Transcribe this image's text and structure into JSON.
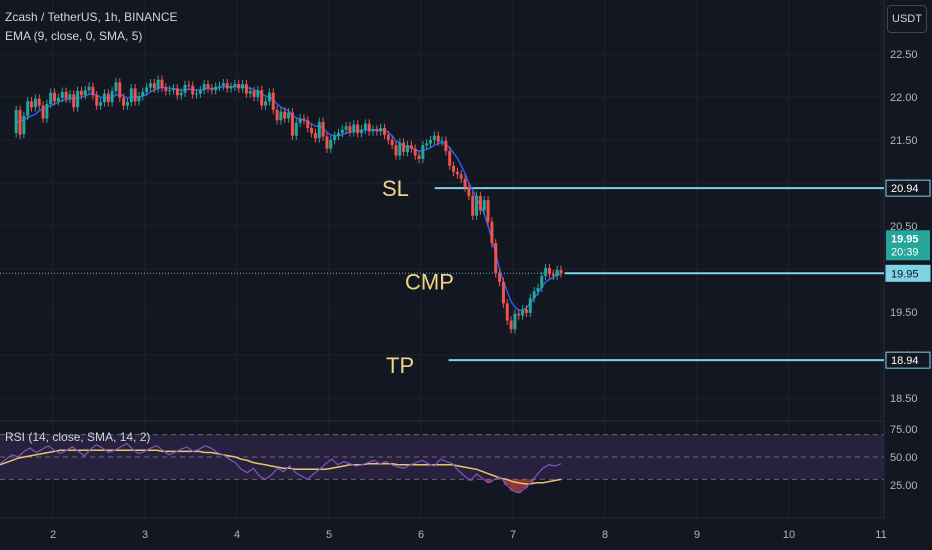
{
  "header": {
    "symbol_line": "Zcash / TetherUS, 1h, BINANCE",
    "ema_line": "EMA (9, close, 0, SMA, 5)",
    "rsi_line": "RSI (14, close, SMA, 14, 2)",
    "currency_button": "USDT"
  },
  "colors": {
    "background": "#131722",
    "up": "#26a69a",
    "down": "#ef5350",
    "ema": "#2962ff",
    "level_line": "#7fd3e6",
    "annotation_text": "#f0d48a",
    "rsi_line": "#7e57c2",
    "rsi_ma": "#e8c66a",
    "rsi_band": "#2a2240"
  },
  "chart_data": [
    {
      "type": "candlestick",
      "title": "Zcash / TetherUS, 1h, BINANCE",
      "x_ticks": [
        "2",
        "3",
        "4",
        "5",
        "6",
        "7",
        "8",
        "9",
        "10",
        "11"
      ],
      "y_ticks": [
        "22.50",
        "22.00",
        "21.50",
        "21.00",
        "20.50",
        "20.00",
        "19.50",
        "19.00",
        "18.50"
      ],
      "ylim": [
        18.35,
        22.9
      ],
      "x_range_days": [
        1.6,
        11.0
      ],
      "bar_spacing_days": 0.0417,
      "candles": [
        [
          21.58,
          21.85
        ],
        [
          21.85,
          21.56
        ],
        [
          21.57,
          21.78
        ],
        [
          21.78,
          21.95
        ],
        [
          21.95,
          21.88
        ],
        [
          21.88,
          21.98
        ],
        [
          21.98,
          21.9
        ],
        [
          21.9,
          21.75
        ],
        [
          21.75,
          21.92
        ],
        [
          21.92,
          22.05
        ],
        [
          22.05,
          21.95
        ],
        [
          21.95,
          21.99
        ],
        [
          21.99,
          22.06
        ],
        [
          22.06,
          21.98
        ],
        [
          21.98,
          22.03
        ],
        [
          22.03,
          21.88
        ],
        [
          21.88,
          22.07
        ],
        [
          22.07,
          22.02
        ],
        [
          22.02,
          22.08
        ],
        [
          22.08,
          22.12
        ],
        [
          22.12,
          22.02
        ],
        [
          22.02,
          21.9
        ],
        [
          21.9,
          21.94
        ],
        [
          21.94,
          22.04
        ],
        [
          22.04,
          21.94
        ],
        [
          21.94,
          22.07
        ],
        [
          22.07,
          22.17
        ],
        [
          22.17,
          21.99
        ],
        [
          21.99,
          21.9
        ],
        [
          21.9,
          21.94
        ],
        [
          21.94,
          22.1
        ],
        [
          22.1,
          21.95
        ],
        [
          21.95,
          22.01
        ],
        [
          22.01,
          22.06
        ],
        [
          22.06,
          22.11
        ],
        [
          22.11,
          22.16
        ],
        [
          22.16,
          22.1
        ],
        [
          22.1,
          22.2
        ],
        [
          22.2,
          22.11
        ],
        [
          22.11,
          22.07
        ],
        [
          22.07,
          22.08
        ],
        [
          22.08,
          22.1
        ],
        [
          22.1,
          22.02
        ],
        [
          22.02,
          22.05
        ],
        [
          22.05,
          22.14
        ],
        [
          22.14,
          22.13
        ],
        [
          22.13,
          22.03
        ],
        [
          22.03,
          22.04
        ],
        [
          22.04,
          22.08
        ],
        [
          22.08,
          22.15
        ],
        [
          22.15,
          22.1
        ],
        [
          22.1,
          22.08
        ],
        [
          22.08,
          22.12
        ],
        [
          22.12,
          22.13
        ],
        [
          22.13,
          22.16
        ],
        [
          22.16,
          22.1
        ],
        [
          22.1,
          22.12
        ],
        [
          22.12,
          22.15
        ],
        [
          22.15,
          22.1
        ],
        [
          22.1,
          22.15
        ],
        [
          22.15,
          22.04
        ],
        [
          22.04,
          22.07
        ],
        [
          22.07,
          22.0
        ],
        [
          22.0,
          22.08
        ],
        [
          22.08,
          21.9
        ],
        [
          21.9,
          21.95
        ],
        [
          21.95,
          22.05
        ],
        [
          22.05,
          21.85
        ],
        [
          21.85,
          21.73
        ],
        [
          21.73,
          21.83
        ],
        [
          21.83,
          21.75
        ],
        [
          21.75,
          21.82
        ],
        [
          21.82,
          21.55
        ],
        [
          21.55,
          21.7
        ],
        [
          21.7,
          21.75
        ],
        [
          21.75,
          21.73
        ],
        [
          21.73,
          21.64
        ],
        [
          21.64,
          21.58
        ],
        [
          21.58,
          21.52
        ],
        [
          21.52,
          21.71
        ],
        [
          21.71,
          21.54
        ],
        [
          21.54,
          21.4
        ],
        [
          21.4,
          21.5
        ],
        [
          21.5,
          21.55
        ],
        [
          21.55,
          21.58
        ],
        [
          21.58,
          21.62
        ],
        [
          21.62,
          21.66
        ],
        [
          21.66,
          21.59
        ],
        [
          21.59,
          21.68
        ],
        [
          21.68,
          21.58
        ],
        [
          21.58,
          21.62
        ],
        [
          21.62,
          21.69
        ],
        [
          21.69,
          21.6
        ],
        [
          21.6,
          21.62
        ],
        [
          21.62,
          21.6
        ],
        [
          21.6,
          21.64
        ],
        [
          21.64,
          21.56
        ],
        [
          21.56,
          21.5
        ],
        [
          21.5,
          21.44
        ],
        [
          21.44,
          21.32
        ],
        [
          21.32,
          21.47
        ],
        [
          21.47,
          21.36
        ],
        [
          21.36,
          21.44
        ],
        [
          21.44,
          21.4
        ],
        [
          21.4,
          21.32
        ],
        [
          21.32,
          21.28
        ],
        [
          21.28,
          21.44
        ],
        [
          21.44,
          21.46
        ],
        [
          21.46,
          21.5
        ],
        [
          21.5,
          21.55
        ],
        [
          21.55,
          21.48
        ],
        [
          21.48,
          21.49
        ],
        [
          21.49,
          21.37
        ],
        [
          21.37,
          21.2
        ],
        [
          21.2,
          21.13
        ],
        [
          21.13,
          21.1
        ],
        [
          21.1,
          21.05
        ],
        [
          21.05,
          20.95
        ],
        [
          20.95,
          20.85
        ],
        [
          20.85,
          20.62
        ],
        [
          20.62,
          20.85
        ],
        [
          20.85,
          20.68
        ],
        [
          20.68,
          20.8
        ],
        [
          20.8,
          20.55
        ],
        [
          20.55,
          20.3
        ],
        [
          20.3,
          19.95
        ],
        [
          19.95,
          19.85
        ],
        [
          19.85,
          19.6
        ],
        [
          19.6,
          19.4
        ],
        [
          19.4,
          19.3
        ],
        [
          19.3,
          19.48
        ],
        [
          19.48,
          19.46
        ],
        [
          19.46,
          19.53
        ],
        [
          19.53,
          19.49
        ],
        [
          19.49,
          19.66
        ],
        [
          19.66,
          19.74
        ],
        [
          19.74,
          19.78
        ],
        [
          19.78,
          19.92
        ],
        [
          19.92,
          20.01
        ],
        [
          20.01,
          19.94
        ],
        [
          19.94,
          19.92
        ],
        [
          19.92,
          19.99
        ],
        [
          19.99,
          19.95
        ]
      ],
      "ema": {
        "name": "EMA (9, close, 0, SMA, 5)",
        "values": [
          21.7,
          21.72,
          21.74,
          21.76,
          21.78,
          21.8,
          21.84,
          21.86,
          21.88,
          21.9,
          21.92,
          21.94,
          21.96,
          21.97,
          21.98,
          21.98,
          21.99,
          22.0,
          22.01,
          22.03,
          22.04,
          22.02,
          22.0,
          21.99,
          21.99,
          22.0,
          22.02,
          22.03,
          22.01,
          21.99,
          22.0,
          22.01,
          22.0,
          22.01,
          22.03,
          22.06,
          22.08,
          22.1,
          22.11,
          22.11,
          22.1,
          22.1,
          22.09,
          22.08,
          22.08,
          22.09,
          22.09,
          22.08,
          22.08,
          22.09,
          22.1,
          22.1,
          22.1,
          22.11,
          22.12,
          22.12,
          22.12,
          22.12,
          22.12,
          22.12,
          22.11,
          22.1,
          22.08,
          22.07,
          22.04,
          22.01,
          22.0,
          21.97,
          21.92,
          21.88,
          21.86,
          21.84,
          21.78,
          21.76,
          21.74,
          21.73,
          21.71,
          21.69,
          21.66,
          21.66,
          21.64,
          21.59,
          21.56,
          21.55,
          21.55,
          21.56,
          21.58,
          21.59,
          21.6,
          21.61,
          21.61,
          21.62,
          21.62,
          21.62,
          21.62,
          21.62,
          21.61,
          21.59,
          21.55,
          21.49,
          21.46,
          21.43,
          21.42,
          21.41,
          21.39,
          21.37,
          21.38,
          21.39,
          21.41,
          21.44,
          21.46,
          21.47,
          21.45,
          21.41,
          21.35,
          21.29,
          21.2,
          21.11,
          21.0,
          20.92,
          20.82,
          20.74,
          20.64,
          20.5,
          20.34,
          20.18,
          20.0,
          19.86,
          19.74,
          19.62,
          19.56,
          19.52,
          19.52,
          19.55,
          19.6,
          19.66,
          19.72,
          19.79,
          19.85,
          19.88,
          19.9,
          19.93,
          19.94
        ]
      },
      "levels": [
        {
          "label": "SL",
          "price_label": "20.94",
          "value": 20.94,
          "from_day": 6.15
        },
        {
          "label": "CMP",
          "price_label": "19.95",
          "value": 19.95,
          "from_day": 7.1
        },
        {
          "label": "TP",
          "price_label": "18.94",
          "value": 18.94,
          "from_day": 6.3
        }
      ],
      "last_price": {
        "value": "19.95",
        "countdown": "20:39"
      }
    },
    {
      "type": "line",
      "title": "RSI (14, close, SMA, 14, 2)",
      "y_ticks": [
        "75.00",
        "50.00",
        "25.00"
      ],
      "ylim": [
        12,
        82
      ],
      "band": [
        30,
        70
      ],
      "series": [
        {
          "name": "RSI",
          "values": [
            44,
            48,
            52,
            50,
            55,
            58,
            54,
            57,
            60,
            56,
            53,
            56,
            59,
            55,
            51,
            57,
            61,
            58,
            54,
            56,
            59,
            62,
            57,
            53,
            55,
            58,
            60,
            56,
            52,
            54,
            57,
            59,
            55,
            57,
            60,
            58,
            54,
            52,
            48,
            45,
            39,
            36,
            40,
            33,
            30,
            34,
            40,
            37,
            42,
            36,
            33,
            30,
            35,
            39,
            44,
            48,
            43,
            46,
            44,
            42,
            43,
            45,
            47,
            44,
            46,
            43,
            41,
            40,
            43,
            45,
            47,
            44,
            42,
            48,
            46,
            44,
            38,
            33,
            29,
            35,
            31,
            27,
            30,
            32,
            25,
            20,
            18,
            22,
            27,
            34,
            40,
            43,
            42,
            44
          ]
        },
        {
          "name": "RSI MA",
          "values": [
            43,
            45,
            47,
            49,
            50,
            51,
            52,
            53,
            54,
            55,
            56,
            56,
            56,
            56,
            56,
            56,
            56,
            56,
            56,
            56,
            56,
            56,
            56,
            56,
            56,
            56,
            56,
            55,
            55,
            55,
            55,
            55,
            55,
            55,
            54,
            54,
            53,
            52,
            51,
            50,
            48,
            47,
            45,
            44,
            43,
            42,
            41,
            40,
            40,
            39,
            39,
            39,
            39,
            39,
            39,
            40,
            41,
            42,
            43,
            43,
            43,
            44,
            44,
            44,
            44,
            44,
            43,
            43,
            43,
            43,
            43,
            43,
            43,
            43,
            43,
            43,
            42,
            41,
            40,
            39,
            37,
            35,
            33,
            31,
            30,
            28,
            27,
            26,
            26,
            27,
            27,
            28,
            29,
            30
          ]
        }
      ]
    }
  ]
}
